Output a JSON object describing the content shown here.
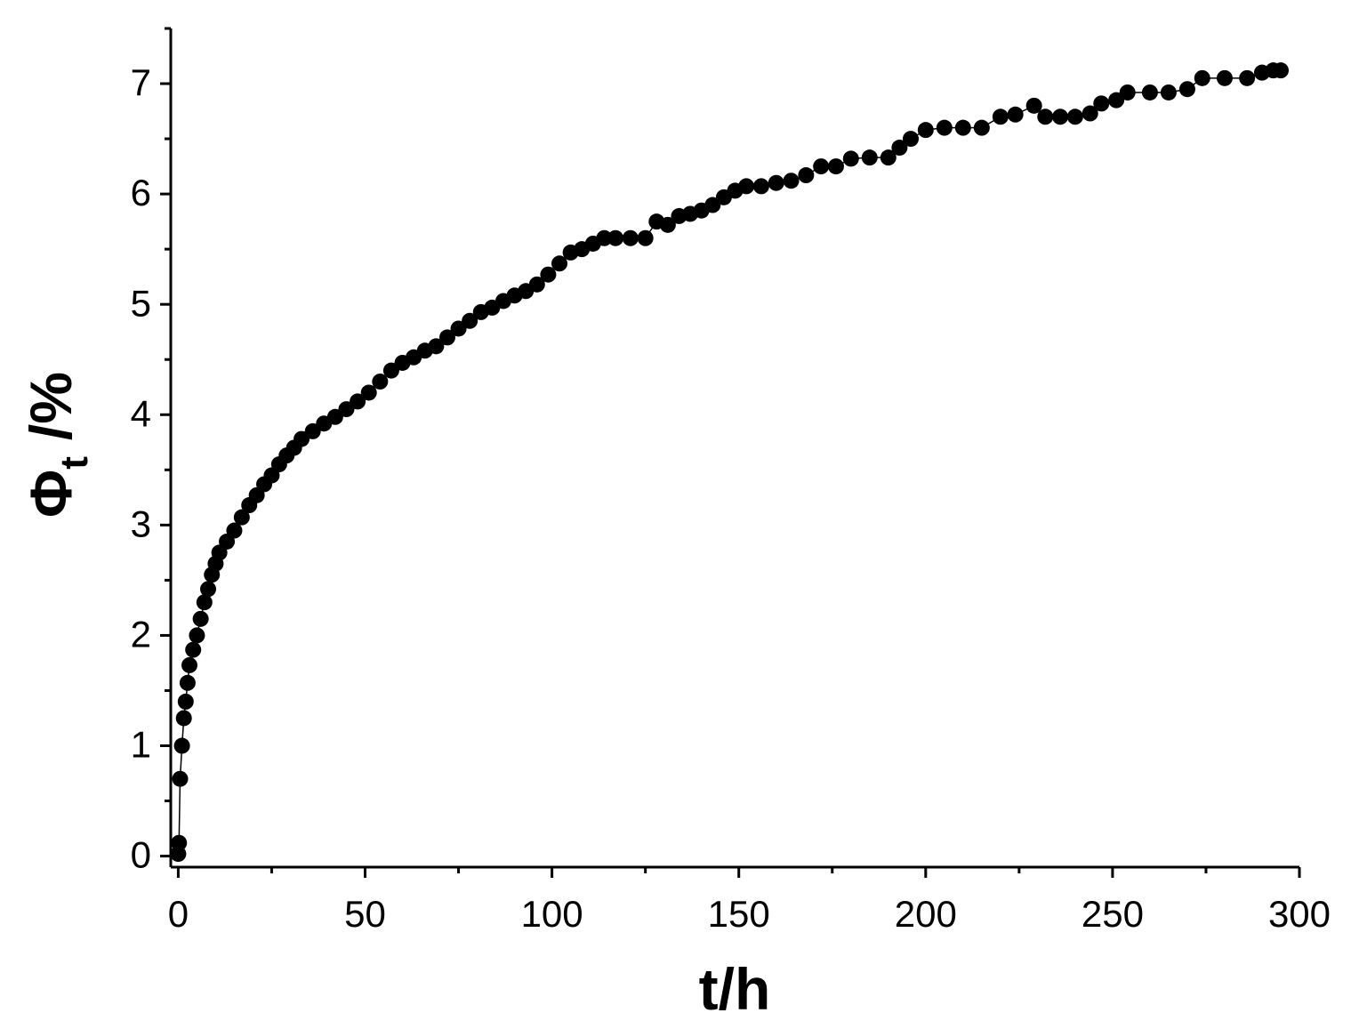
{
  "chart_data": {
    "type": "scatter",
    "x_label": "t/h",
    "y_label": {
      "symbol": "Φ",
      "subscript": "t",
      "unit": "/%"
    },
    "color": "#000000",
    "xlim": [
      -2,
      300
    ],
    "ylim": [
      -0.1,
      7.5
    ],
    "xticks": [
      0,
      50,
      100,
      150,
      200,
      250,
      300
    ],
    "yticks": [
      0,
      1,
      2,
      3,
      4,
      5,
      6,
      7
    ],
    "xminorticks": [
      25,
      75,
      125,
      175,
      225,
      275
    ],
    "yminorticks": [
      0.5,
      1.5,
      2.5,
      3.5,
      4.5,
      5.5,
      6.5,
      7.5
    ],
    "x": [
      0,
      0.2,
      0.5,
      1,
      1.5,
      2,
      2.5,
      3,
      4,
      5,
      6,
      7,
      8,
      9,
      10,
      11,
      13,
      15,
      17,
      19,
      21,
      23,
      25,
      27,
      29,
      31,
      33,
      36,
      39,
      42,
      45,
      48,
      51,
      54,
      57,
      60,
      63,
      66,
      69,
      72,
      75,
      78,
      81,
      84,
      87,
      90,
      93,
      96,
      99,
      102,
      105,
      108,
      111,
      114,
      117,
      121,
      125,
      128,
      131,
      134,
      137,
      140,
      143,
      146,
      149,
      152,
      156,
      160,
      164,
      168,
      172,
      176,
      180,
      185,
      190,
      193,
      196,
      200,
      205,
      210,
      215,
      220,
      224,
      229,
      232,
      236,
      240,
      244,
      247,
      251,
      254,
      260,
      265,
      270,
      274,
      280,
      286,
      290,
      293,
      295
    ],
    "values": [
      0.02,
      0.12,
      0.7,
      1.0,
      1.25,
      1.4,
      1.57,
      1.73,
      1.87,
      2.0,
      2.15,
      2.3,
      2.42,
      2.55,
      2.65,
      2.75,
      2.85,
      2.95,
      3.07,
      3.18,
      3.27,
      3.37,
      3.45,
      3.55,
      3.63,
      3.7,
      3.78,
      3.85,
      3.92,
      3.98,
      4.05,
      4.12,
      4.2,
      4.3,
      4.4,
      4.47,
      4.52,
      4.58,
      4.62,
      4.7,
      4.78,
      4.85,
      4.93,
      4.97,
      5.03,
      5.08,
      5.12,
      5.18,
      5.27,
      5.37,
      5.47,
      5.5,
      5.55,
      5.6,
      5.6,
      5.6,
      5.6,
      5.75,
      5.72,
      5.8,
      5.82,
      5.85,
      5.9,
      5.97,
      6.03,
      6.07,
      6.07,
      6.1,
      6.12,
      6.17,
      6.25,
      6.25,
      6.32,
      6.33,
      6.33,
      6.42,
      6.5,
      6.58,
      6.6,
      6.6,
      6.6,
      6.7,
      6.72,
      6.8,
      6.7,
      6.7,
      6.7,
      6.73,
      6.82,
      6.85,
      6.92,
      6.92,
      6.92,
      6.95,
      7.05,
      7.05,
      7.05,
      7.1,
      7.12,
      7.12
    ]
  }
}
